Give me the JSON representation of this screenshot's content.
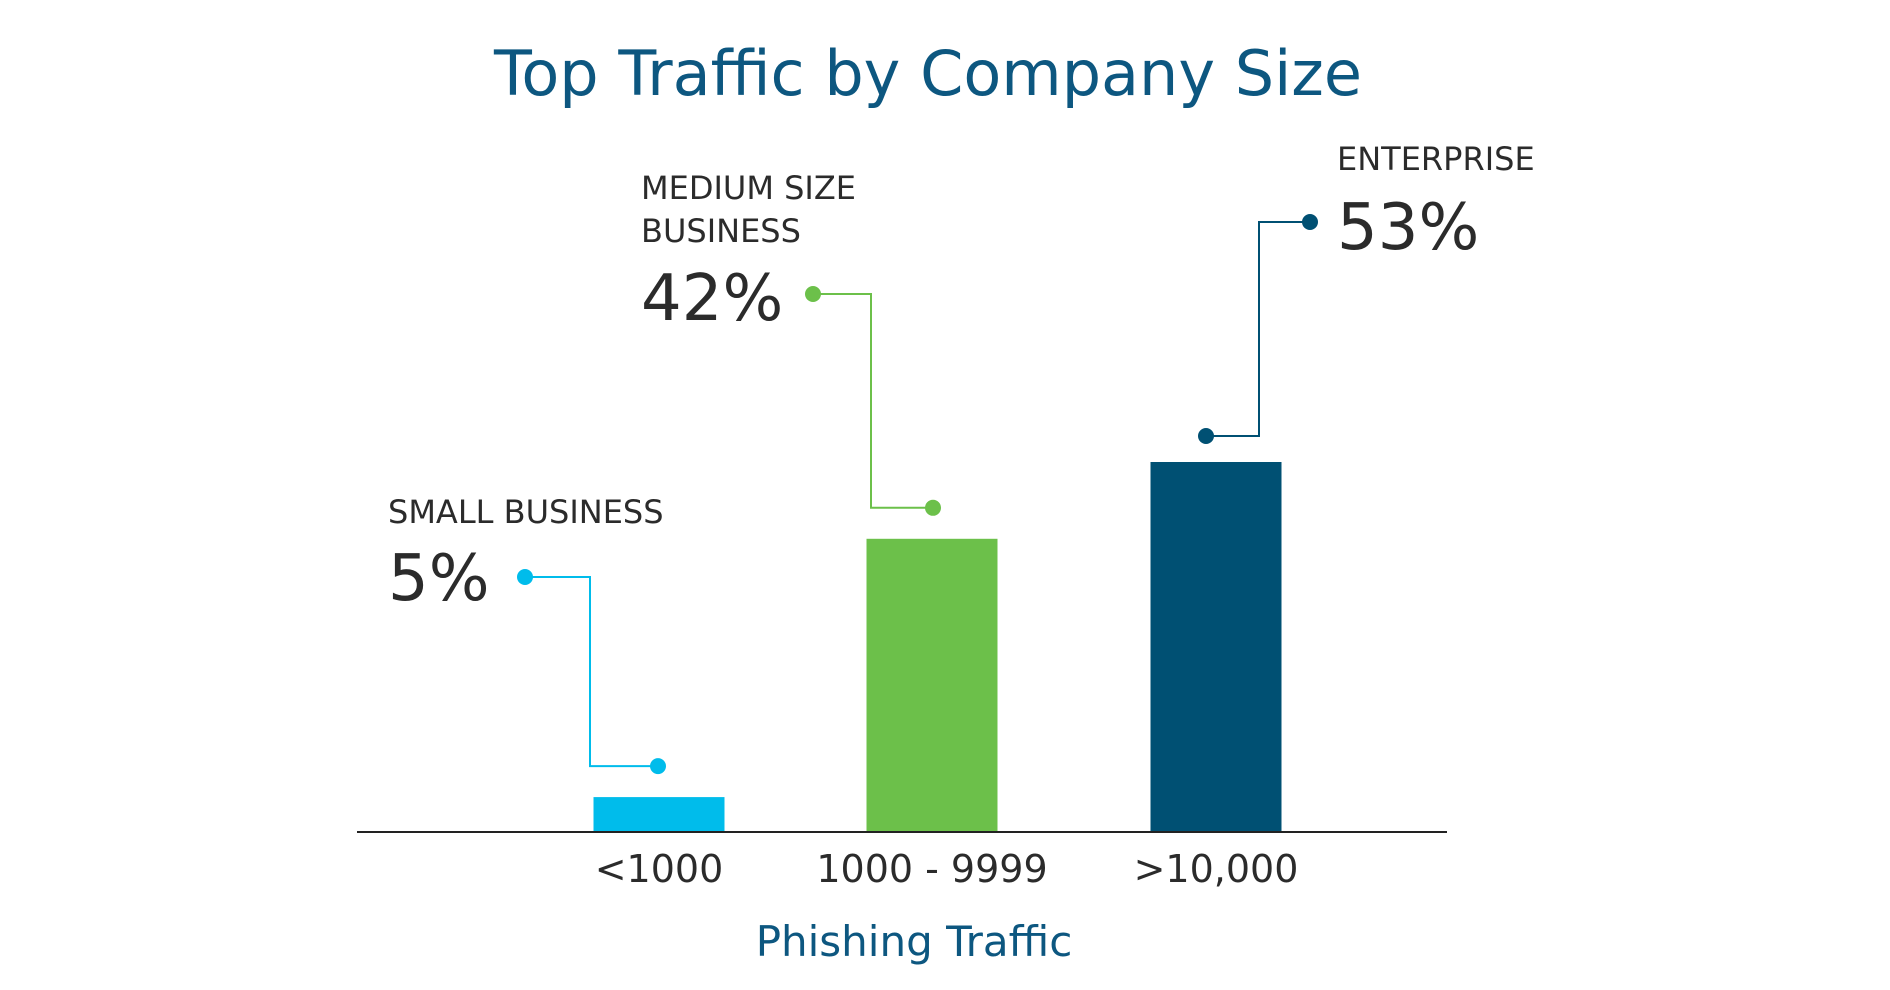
{
  "chart_data": {
    "type": "bar",
    "title": "Top Traffic by Company Size",
    "xlabel": "Phishing Traffic",
    "ylabel": "",
    "ylim": [
      0,
      60
    ],
    "grid": false,
    "categories": [
      "<1000",
      "1000 - 9999",
      ">10,000"
    ],
    "values": [
      5,
      42,
      53
    ],
    "annotations": [
      {
        "lines": [
          "SMALL BUSINESS"
        ],
        "value_label": "5%",
        "color": "#00bceb"
      },
      {
        "lines": [
          "MEDIUM SIZE",
          "BUSINESS"
        ],
        "value_label": "42%",
        "color": "#6cc04a"
      },
      {
        "lines": [
          "ENTERPRISE"
        ],
        "value_label": "53%",
        "color": "#005073"
      }
    ]
  },
  "colors": {
    "title": "#0d5780",
    "axis_title": "#0d5780",
    "text": "#2b2b2b",
    "axis_line": "#222222"
  }
}
